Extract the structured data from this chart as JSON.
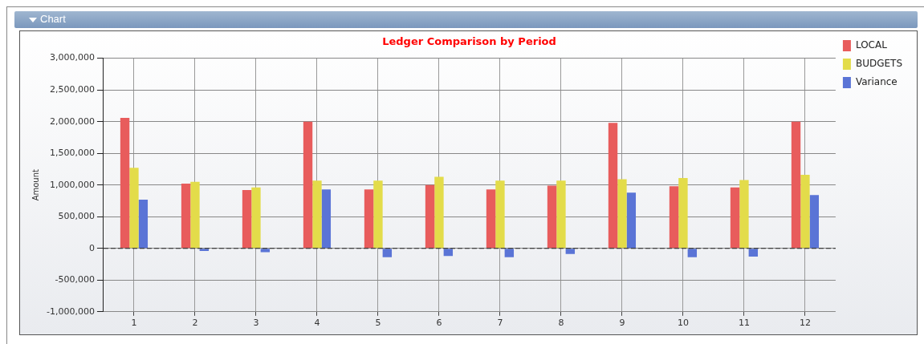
{
  "chart_data": {
    "type": "bar",
    "title": "Ledger Comparison by Period",
    "ylabel": "Amount",
    "annotations": [
      "Chart"
    ],
    "categories": [
      "1",
      "2",
      "3",
      "4",
      "5",
      "6",
      "7",
      "8",
      "9",
      "10",
      "11",
      "12"
    ],
    "series": [
      {
        "name": "LOCAL",
        "color": "#e85c5c",
        "values": [
          2060000,
          1020000,
          920000,
          2000000,
          930000,
          1000000,
          930000,
          990000,
          1980000,
          980000,
          960000,
          2000000
        ]
      },
      {
        "name": "BUDGETS",
        "color": "#e3dc4a",
        "values": [
          1270000,
          1050000,
          960000,
          1070000,
          1070000,
          1130000,
          1070000,
          1070000,
          1090000,
          1110000,
          1080000,
          1160000
        ]
      },
      {
        "name": "Variance",
        "color": "#5a74d6",
        "values": [
          770000,
          -40000,
          -60000,
          930000,
          -140000,
          -120000,
          -140000,
          -90000,
          880000,
          -140000,
          -130000,
          840000
        ]
      }
    ],
    "ylim": [
      -1000000,
      3000000
    ],
    "yticks": [
      {
        "value": -1000000,
        "label": "-1,000,000"
      },
      {
        "value": -500000,
        "label": "-500,000"
      },
      0,
      {
        "value": 500000,
        "label": "500,000"
      },
      {
        "value": 1000000,
        "label": "1,000,000"
      },
      {
        "value": 1500000,
        "label": "1,500,000"
      },
      {
        "value": 2000000,
        "label": "2,000,000"
      },
      {
        "value": 2500000,
        "label": "2,500,000"
      },
      {
        "value": 3000000,
        "label": "3,000,000"
      }
    ],
    "ref_lines": [
      {
        "axis": "y",
        "value": 0,
        "color": "#222222",
        "line_style": "dashed"
      }
    ],
    "grid": true,
    "legend": "top right"
  }
}
